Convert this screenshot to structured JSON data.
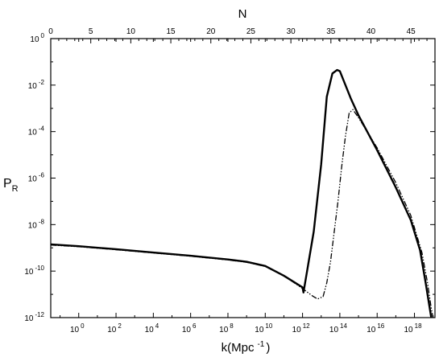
{
  "chart_data": {
    "type": "line",
    "title": "",
    "top_axis": {
      "label": "N",
      "range": [
        0,
        48
      ],
      "ticks": [
        0,
        5,
        10,
        15,
        20,
        25,
        30,
        35,
        40,
        45
      ],
      "tick_labels": [
        "0",
        "5",
        "10",
        "15",
        "20",
        "25",
        "30",
        "35",
        "40",
        "45"
      ]
    },
    "x_axis": {
      "label_main": "k(Mpc",
      "label_sup": "-1",
      "label_close": ")",
      "scale": "log10",
      "range_log10": [
        -1.5,
        19.1
      ],
      "tick_exponents": [
        0,
        2,
        4,
        6,
        8,
        10,
        12,
        14,
        16,
        18
      ],
      "tick_base": "10",
      "tick_superscripts": [
        "0",
        "2",
        "4",
        "6",
        "8",
        "10",
        "12",
        "14",
        "16",
        "18"
      ]
    },
    "y_axis": {
      "label_main": "P",
      "label_sub": "R",
      "scale": "log10",
      "range_log10": [
        -12,
        0
      ],
      "tick_exponents": [
        -12,
        -10,
        -8,
        -6,
        -4,
        -2,
        0
      ],
      "tick_base": "10",
      "tick_superscripts": [
        "-12",
        "-10",
        "-8",
        "-6",
        "-4",
        "-2",
        "0"
      ]
    },
    "series": [
      {
        "style": "solid",
        "color": "#000000",
        "points_log10": [
          [
            -1.5,
            -8.85
          ],
          [
            0,
            -8.93
          ],
          [
            2,
            -9.06
          ],
          [
            4,
            -9.2
          ],
          [
            6,
            -9.34
          ],
          [
            8,
            -9.5
          ],
          [
            9,
            -9.6
          ],
          [
            10,
            -9.78
          ],
          [
            11,
            -10.2
          ],
          [
            12,
            -10.7
          ],
          [
            12.05,
            -10.92
          ],
          [
            12.6,
            -8.3
          ],
          [
            13.0,
            -5.4
          ],
          [
            13.3,
            -2.5
          ],
          [
            13.6,
            -1.5
          ],
          [
            13.85,
            -1.35
          ],
          [
            14.0,
            -1.4
          ],
          [
            14.3,
            -2.0
          ],
          [
            14.6,
            -2.6
          ],
          [
            15,
            -3.3
          ],
          [
            16,
            -4.8
          ],
          [
            17,
            -6.4
          ],
          [
            17.8,
            -7.8
          ],
          [
            18.3,
            -9.1
          ],
          [
            18.6,
            -10.5
          ],
          [
            18.8,
            -11.5
          ],
          [
            18.9,
            -12.0
          ]
        ]
      },
      {
        "style": "dash-dot-dot",
        "color": "#000000",
        "points_log10": [
          [
            -1.5,
            -8.88
          ],
          [
            0,
            -8.95
          ],
          [
            2,
            -9.08
          ],
          [
            4,
            -9.22
          ],
          [
            6,
            -9.36
          ],
          [
            8,
            -9.52
          ],
          [
            9,
            -9.62
          ],
          [
            10,
            -9.8
          ],
          [
            11,
            -10.2
          ],
          [
            12,
            -10.75
          ],
          [
            12.5,
            -11.05
          ],
          [
            12.8,
            -11.2
          ],
          [
            13.1,
            -11.1
          ],
          [
            13.3,
            -10.5
          ],
          [
            13.5,
            -9.6
          ],
          [
            13.7,
            -8.3
          ],
          [
            13.9,
            -7.0
          ],
          [
            14.1,
            -5.5
          ],
          [
            14.3,
            -4.2
          ],
          [
            14.5,
            -3.2
          ],
          [
            14.7,
            -3.05
          ],
          [
            15,
            -3.4
          ],
          [
            16,
            -4.7
          ],
          [
            17,
            -6.2
          ],
          [
            17.8,
            -7.6
          ],
          [
            18.4,
            -9.2
          ],
          [
            18.7,
            -10.5
          ],
          [
            18.9,
            -11.6
          ],
          [
            19.0,
            -12.0
          ]
        ]
      }
    ],
    "grid": false,
    "legend": "none"
  }
}
